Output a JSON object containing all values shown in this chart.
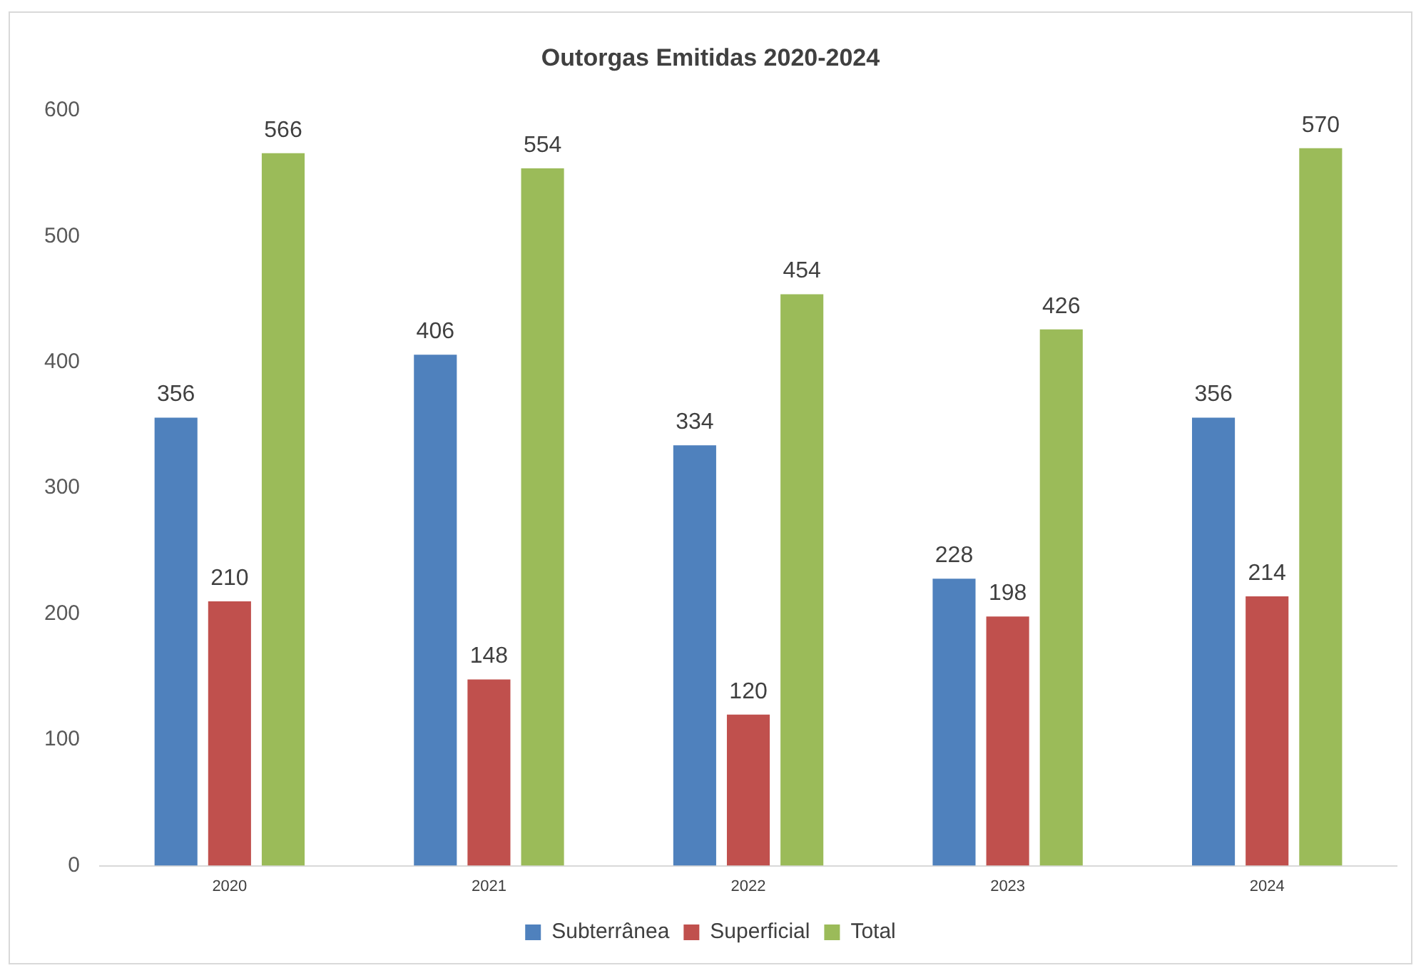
{
  "chart_data": {
    "type": "bar",
    "title": "Outorgas Emitidas 2020-2024",
    "categories": [
      "2020",
      "2021",
      "2022",
      "2023",
      "2024"
    ],
    "series": [
      {
        "name": "Subterrânea",
        "color": "#4f81bd",
        "values": [
          356,
          406,
          334,
          228,
          356
        ]
      },
      {
        "name": "Superficial",
        "color": "#c0504d",
        "values": [
          210,
          148,
          120,
          198,
          214
        ]
      },
      {
        "name": "Total",
        "color": "#9bbb59",
        "values": [
          566,
          554,
          454,
          426,
          570
        ]
      }
    ],
    "ylim": [
      0,
      600
    ],
    "yticks": [
      0,
      100,
      200,
      300,
      400,
      500,
      600
    ],
    "grid": false,
    "legend": "bottom",
    "data_labels": true
  }
}
